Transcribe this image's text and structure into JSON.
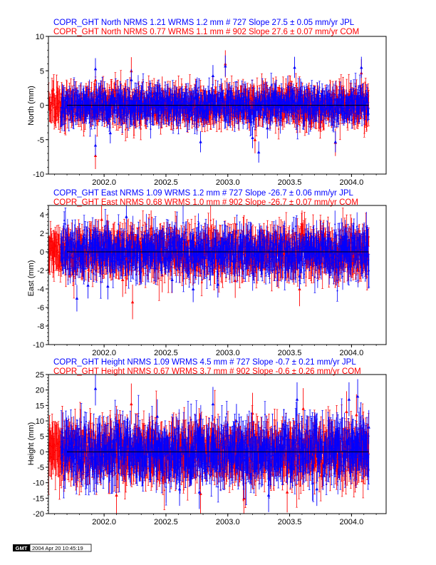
{
  "colors": {
    "jpl": "#0000ff",
    "com": "#ff0000",
    "axis": "#000000",
    "fit": "#000000"
  },
  "x_tick_labels": [
    "2002.0",
    "2002.5",
    "2003.0",
    "2003.5",
    "2004.0"
  ],
  "chart_data": [
    {
      "type": "scatter",
      "component": "north",
      "title_lines": [
        {
          "text": "COPR_GHT North NRMS 1.21 WRMS  1.2 mm # 727 Slope   27.5 ±  0.05 mm/yr JPL",
          "series": "JPL"
        },
        {
          "text": "COPR_GHT North NRMS 0.77 WRMS  1.1 mm # 902 Slope   27.6 ±  0.07 mm/yr COM",
          "series": "COM"
        }
      ],
      "ylabel": "North (mm)",
      "xlim": [
        2001.55,
        2004.28
      ],
      "ylim": [
        -10,
        10
      ],
      "y_ticks": [
        "-10",
        "-5",
        "0",
        "5",
        "10"
      ],
      "x_ticks": [
        2002.0,
        2002.5,
        2003.0,
        2003.5,
        2004.0
      ],
      "fit_line": {
        "y": 0
      },
      "series": [
        {
          "name": "JPL",
          "n": 727,
          "nrms": 1.21,
          "wrms_mm": 1.2,
          "slope_mm_yr": 27.5,
          "slope_sigma": 0.05,
          "x_start": 2001.65,
          "x_end": 2004.14,
          "scatter_sd": 1.2,
          "error_bar": 1.4,
          "outliers": [
            [
              2001.93,
              -5.8
            ],
            [
              2001.93,
              5.3
            ],
            [
              2002.05,
              -4.0
            ],
            [
              2002.22,
              3.7
            ],
            [
              2002.46,
              1.0
            ],
            [
              2002.78,
              -5.3
            ],
            [
              2002.88,
              4.3
            ],
            [
              2002.98,
              5.7
            ],
            [
              2003.2,
              -4.7
            ],
            [
              2003.25,
              -6.8
            ],
            [
              2003.32,
              -3.3
            ],
            [
              2003.54,
              5.5
            ],
            [
              2003.87,
              -5.3
            ],
            [
              2004.08,
              5.5
            ]
          ]
        },
        {
          "name": "COM",
          "n": 902,
          "nrms": 0.77,
          "wrms_mm": 1.1,
          "slope_mm_yr": 27.6,
          "slope_sigma": 0.07,
          "x_start": 2001.55,
          "x_end": 2004.14,
          "scatter_sd": 1.1,
          "error_bar": 1.8,
          "outliers": [
            [
              2001.93,
              -7.3
            ],
            [
              2001.93,
              3.7
            ],
            [
              2002.22,
              5.0
            ],
            [
              2002.24,
              -2.5
            ],
            [
              2002.47,
              2.2
            ],
            [
              2002.98,
              6.0
            ],
            [
              2003.22,
              -5.0
            ],
            [
              2003.39,
              1.8
            ],
            [
              2003.87,
              -5.4
            ],
            [
              2004.08,
              4.7
            ]
          ]
        }
      ]
    },
    {
      "type": "scatter",
      "component": "east",
      "title_lines": [
        {
          "text": "COPR_GHT East NRMS 1.09 WRMS  1.2 mm # 727 Slope  -26.7 ±  0.06 mm/yr JPL",
          "series": "JPL"
        },
        {
          "text": "COPR_GHT East NRMS 0.68 WRMS  1.0 mm # 902 Slope  -26.7 ±  0.07 mm/yr COM",
          "series": "COM"
        }
      ],
      "ylabel": "East (mm)",
      "xlim": [
        2001.55,
        2004.28
      ],
      "ylim": [
        -10,
        5
      ],
      "y_ticks": [
        "-10",
        "-8",
        "-6",
        "-4",
        "-2",
        "0",
        "2",
        "4"
      ],
      "x_ticks": [
        2002.0,
        2002.5,
        2003.0,
        2003.5,
        2004.0
      ],
      "fit_line": {
        "y": 0
      },
      "series": [
        {
          "name": "JPL",
          "n": 727,
          "nrms": 1.09,
          "wrms_mm": 1.2,
          "slope_mm_yr": -26.7,
          "slope_sigma": 0.06,
          "x_start": 2001.65,
          "x_end": 2004.14,
          "scatter_sd": 1.2,
          "error_bar": 1.3,
          "outliers": [
            [
              2001.78,
              -5.0
            ],
            [
              2001.87,
              -3.6
            ],
            [
              2002.03,
              -3.7
            ],
            [
              2002.18,
              3.8
            ],
            [
              2002.55,
              -3.0
            ],
            [
              2002.72,
              -4.0
            ],
            [
              2002.92,
              -3.5
            ],
            [
              2003.16,
              1.5
            ],
            [
              2003.58,
              -2.6
            ],
            [
              2003.82,
              -2.1
            ],
            [
              2003.95,
              1.2
            ],
            [
              2004.12,
              0.3
            ]
          ]
        },
        {
          "name": "COM",
          "n": 902,
          "nrms": 0.68,
          "wrms_mm": 1.0,
          "slope_mm_yr": -26.7,
          "slope_sigma": 0.07,
          "x_start": 2001.55,
          "x_end": 2004.14,
          "scatter_sd": 1.0,
          "error_bar": 1.7,
          "outliers": [
            [
              2001.98,
              3.5
            ],
            [
              2002.15,
              -3.0
            ],
            [
              2002.23,
              -5.4
            ],
            [
              2002.38,
              2.6
            ],
            [
              2002.47,
              -2.5
            ],
            [
              2003.06,
              -3.1
            ],
            [
              2003.58,
              -4.0
            ],
            [
              2003.6,
              2.6
            ],
            [
              2004.0,
              1.8
            ]
          ]
        }
      ]
    },
    {
      "type": "scatter",
      "component": "height",
      "title_lines": [
        {
          "text": "COPR_GHT Height NRMS 1.09 WRMS  4.5 mm # 727 Slope   -0.7 ±  0.21 mm/yr JPL",
          "series": "JPL"
        },
        {
          "text": "COPR_GHT Height NRMS 0.67 WRMS  3.7 mm # 902 Slope   -0.6 ±  0.26 mm/yr COM",
          "series": "COM"
        }
      ],
      "ylabel": "Height (mm)",
      "xlim": [
        2001.55,
        2004.28
      ],
      "ylim": [
        -20,
        25
      ],
      "y_ticks": [
        "-20",
        "-15",
        "-10",
        "-5",
        "0",
        "5",
        "10",
        "15",
        "20",
        "25"
      ],
      "x_ticks": [
        2002.0,
        2002.5,
        2003.0,
        2003.5,
        2004.0
      ],
      "fit_line": {
        "y": 0
      },
      "series": [
        {
          "name": "JPL",
          "n": 727,
          "nrms": 1.09,
          "wrms_mm": 4.5,
          "slope_mm_yr": -0.7,
          "slope_sigma": 0.21,
          "x_start": 2001.65,
          "x_end": 2004.14,
          "scatter_sd": 4.5,
          "error_bar": 5.0,
          "outliers": [
            [
              2001.93,
              20.5
            ],
            [
              2002.43,
              11.5
            ],
            [
              2002.61,
              -12.0
            ],
            [
              2002.77,
              -13.0
            ],
            [
              2002.88,
              15.5
            ],
            [
              2003.07,
              10.0
            ],
            [
              2003.33,
              -14.0
            ],
            [
              2003.56,
              17.0
            ],
            [
              2003.72,
              -12.0
            ],
            [
              2003.98,
              17.0
            ],
            [
              2004.05,
              18.0
            ],
            [
              2004.14,
              8.0
            ]
          ]
        },
        {
          "name": "COM",
          "n": 902,
          "nrms": 0.67,
          "wrms_mm": 3.7,
          "slope_mm_yr": -0.6,
          "slope_sigma": 0.26,
          "x_start": 2001.55,
          "x_end": 2004.14,
          "scatter_sd": 3.7,
          "error_bar": 6.0,
          "outliers": [
            [
              2002.1,
              -14.0
            ],
            [
              2002.22,
              15.5
            ],
            [
              2002.39,
              5.0
            ],
            [
              2002.78,
              -13.5
            ],
            [
              2003.13,
              -15.0
            ],
            [
              2003.2,
              12.5
            ],
            [
              2003.48,
              -13.0
            ],
            [
              2003.61,
              14.0
            ],
            [
              2003.96,
              13.0
            ],
            [
              2004.04,
              12.0
            ]
          ]
        }
      ]
    }
  ],
  "footer": {
    "logo_text": "GMT",
    "timestamp": "2004 Apr 20 10:45:19"
  }
}
